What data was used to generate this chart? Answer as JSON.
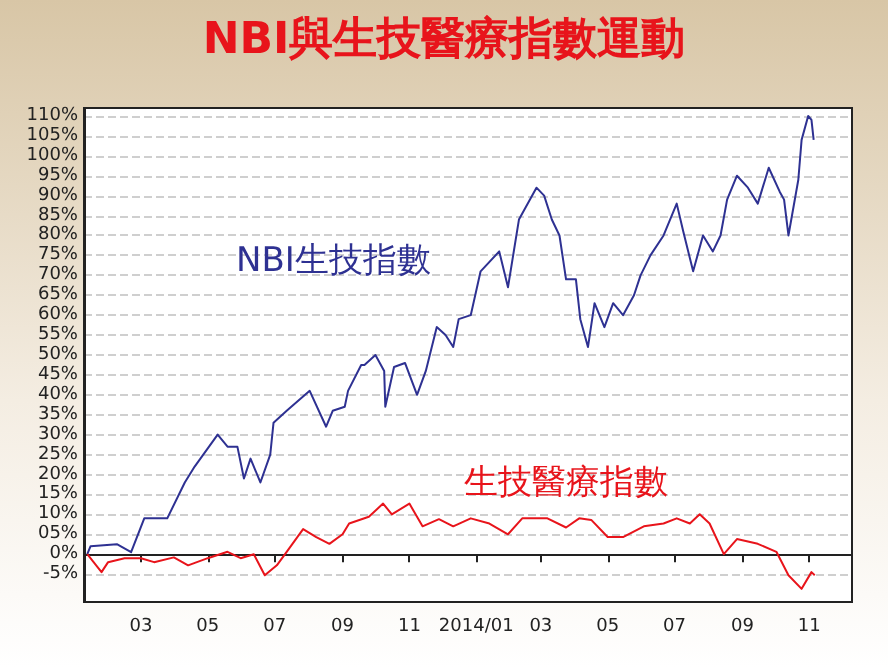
{
  "chart_data": {
    "type": "line",
    "title": "NBI與生技醫療指數運動",
    "xlim": [
      "2013-01-08",
      "2014-12-10"
    ],
    "xticks": [
      {
        "value": "2013-03-01",
        "label": "03"
      },
      {
        "value": "2013-05-01",
        "label": "05"
      },
      {
        "value": "2013-07-01",
        "label": "07"
      },
      {
        "value": "2013-09-01",
        "label": "09"
      },
      {
        "value": "2013-11-01",
        "label": "11"
      },
      {
        "value": "2014-01-01",
        "label": "2014/01"
      },
      {
        "value": "2014-03-01",
        "label": "03"
      },
      {
        "value": "2014-05-01",
        "label": "05"
      },
      {
        "value": "2014-07-01",
        "label": "07"
      },
      {
        "value": "2014-09-01",
        "label": "09"
      },
      {
        "value": "2014-11-01",
        "label": "11"
      }
    ],
    "ylim": [
      -12,
      112
    ],
    "yticks": [
      {
        "value": -5,
        "label": "-5%"
      },
      {
        "value": 0,
        "label": "0%"
      },
      {
        "value": 5,
        "label": "05%"
      },
      {
        "value": 10,
        "label": "10%"
      },
      {
        "value": 15,
        "label": "15%"
      },
      {
        "value": 20,
        "label": "20%"
      },
      {
        "value": 25,
        "label": "25%"
      },
      {
        "value": 30,
        "label": "30%"
      },
      {
        "value": 35,
        "label": "35%"
      },
      {
        "value": 40,
        "label": "40%"
      },
      {
        "value": 45,
        "label": "45%"
      },
      {
        "value": 50,
        "label": "50%"
      },
      {
        "value": 55,
        "label": "55%"
      },
      {
        "value": 60,
        "label": "60%"
      },
      {
        "value": 65,
        "label": "65%"
      },
      {
        "value": 70,
        "label": "70%"
      },
      {
        "value": 75,
        "label": "75%"
      },
      {
        "value": 80,
        "label": "80%"
      },
      {
        "value": 85,
        "label": "85%"
      },
      {
        "value": 90,
        "label": "90%"
      },
      {
        "value": 95,
        "label": "95%"
      },
      {
        "value": 100,
        "label": "100%"
      },
      {
        "value": 105,
        "label": "105%"
      },
      {
        "value": 110,
        "label": "110%"
      }
    ],
    "grid": "y",
    "legend": false,
    "marker": "none",
    "line_style": "solid",
    "series": [
      {
        "name": "NBI生技指數",
        "color": "#2e3192",
        "x": [
          "2013-01-11",
          "2013-01-14",
          "2013-02-07",
          "2013-02-20",
          "2013-03-04",
          "2013-03-25",
          "2013-04-10",
          "2013-04-19",
          "2013-05-10",
          "2013-05-19",
          "2013-05-28",
          "2013-06-03",
          "2013-06-09",
          "2013-06-18",
          "2013-06-27",
          "2013-06-30",
          "2013-07-12",
          "2013-08-02",
          "2013-08-17",
          "2013-08-23",
          "2013-09-03",
          "2013-09-06",
          "2013-09-18",
          "2013-09-21",
          "2013-10-01",
          "2013-10-09",
          "2013-10-10",
          "2013-10-18",
          "2013-10-28",
          "2013-11-08",
          "2013-11-16",
          "2013-11-26",
          "2013-12-04",
          "2013-12-11",
          "2013-12-16",
          "2013-12-27",
          "2014-01-05",
          "2014-01-22",
          "2014-01-30",
          "2014-02-09",
          "2014-02-25",
          "2014-03-04",
          "2014-03-11",
          "2014-03-18",
          "2014-03-24",
          "2014-04-02",
          "2014-04-06",
          "2014-04-13",
          "2014-04-19",
          "2014-04-28",
          "2014-05-06",
          "2014-05-15",
          "2014-05-25",
          "2014-05-31",
          "2014-06-09",
          "2014-06-21",
          "2014-07-03",
          "2014-07-09",
          "2014-07-18",
          "2014-07-27",
          "2014-08-05",
          "2014-08-12",
          "2014-08-18",
          "2014-08-27",
          "2014-09-06",
          "2014-09-15",
          "2014-09-25",
          "2014-10-05",
          "2014-10-09",
          "2014-10-13",
          "2014-10-22",
          "2014-10-25",
          "2014-10-31",
          "2014-11-03",
          "2014-11-05"
        ],
        "values": [
          0,
          2,
          2.5,
          0.5,
          9,
          9,
          18,
          22,
          30,
          27,
          27,
          19,
          24,
          18,
          25,
          33,
          36,
          41,
          32,
          36,
          37,
          41,
          47.5,
          47.5,
          50,
          46,
          37,
          47,
          48,
          40,
          46,
          57,
          55,
          52,
          59,
          60,
          71,
          76,
          67,
          84,
          92,
          90,
          84,
          80,
          69,
          69,
          59,
          52,
          63,
          57,
          63,
          60,
          65,
          70,
          75,
          80,
          88,
          81,
          71,
          80,
          76,
          80,
          89,
          95,
          92,
          88,
          97,
          91,
          89,
          80,
          94,
          104,
          110,
          109,
          104
        ]
      },
      {
        "name": "生技醫療指數",
        "color": "#e8141b",
        "x": [
          "2013-01-11",
          "2013-01-24",
          "2013-01-30",
          "2013-02-14",
          "2013-03-01",
          "2013-03-13",
          "2013-03-31",
          "2013-04-13",
          "2013-05-01",
          "2013-05-19",
          "2013-05-31",
          "2013-06-12",
          "2013-06-22",
          "2013-07-03",
          "2013-07-12",
          "2013-07-27",
          "2013-08-08",
          "2013-08-20",
          "2013-09-01",
          "2013-09-07",
          "2013-09-25",
          "2013-10-08",
          "2013-10-16",
          "2013-11-01",
          "2013-11-13",
          "2013-11-28",
          "2013-12-11",
          "2013-12-27",
          "2014-01-13",
          "2014-01-30",
          "2014-02-12",
          "2014-03-07",
          "2014-03-24",
          "2014-04-05",
          "2014-04-16",
          "2014-05-01",
          "2014-05-15",
          "2014-06-03",
          "2014-06-21",
          "2014-07-03",
          "2014-07-15",
          "2014-07-24",
          "2014-08-02",
          "2014-08-15",
          "2014-08-27",
          "2014-09-15",
          "2014-10-02",
          "2014-10-13",
          "2014-10-25",
          "2014-11-03",
          "2014-11-06"
        ],
        "values": [
          0,
          -4.5,
          -2,
          -1,
          -1,
          -2,
          -0.8,
          -2.8,
          -1,
          0.6,
          -1,
          0,
          -5.3,
          -2.8,
          0.6,
          6.3,
          4.3,
          2.6,
          5,
          7.7,
          9.4,
          12.7,
          10,
          12.7,
          7,
          8.8,
          7,
          9,
          7.7,
          5,
          9,
          9,
          6.7,
          9,
          8.6,
          4.3,
          4.3,
          7,
          7.7,
          9,
          7.7,
          10,
          7.7,
          0,
          3.8,
          2.6,
          0.6,
          -5.3,
          -8.7,
          -4.5,
          -5.3
        ]
      }
    ]
  }
}
